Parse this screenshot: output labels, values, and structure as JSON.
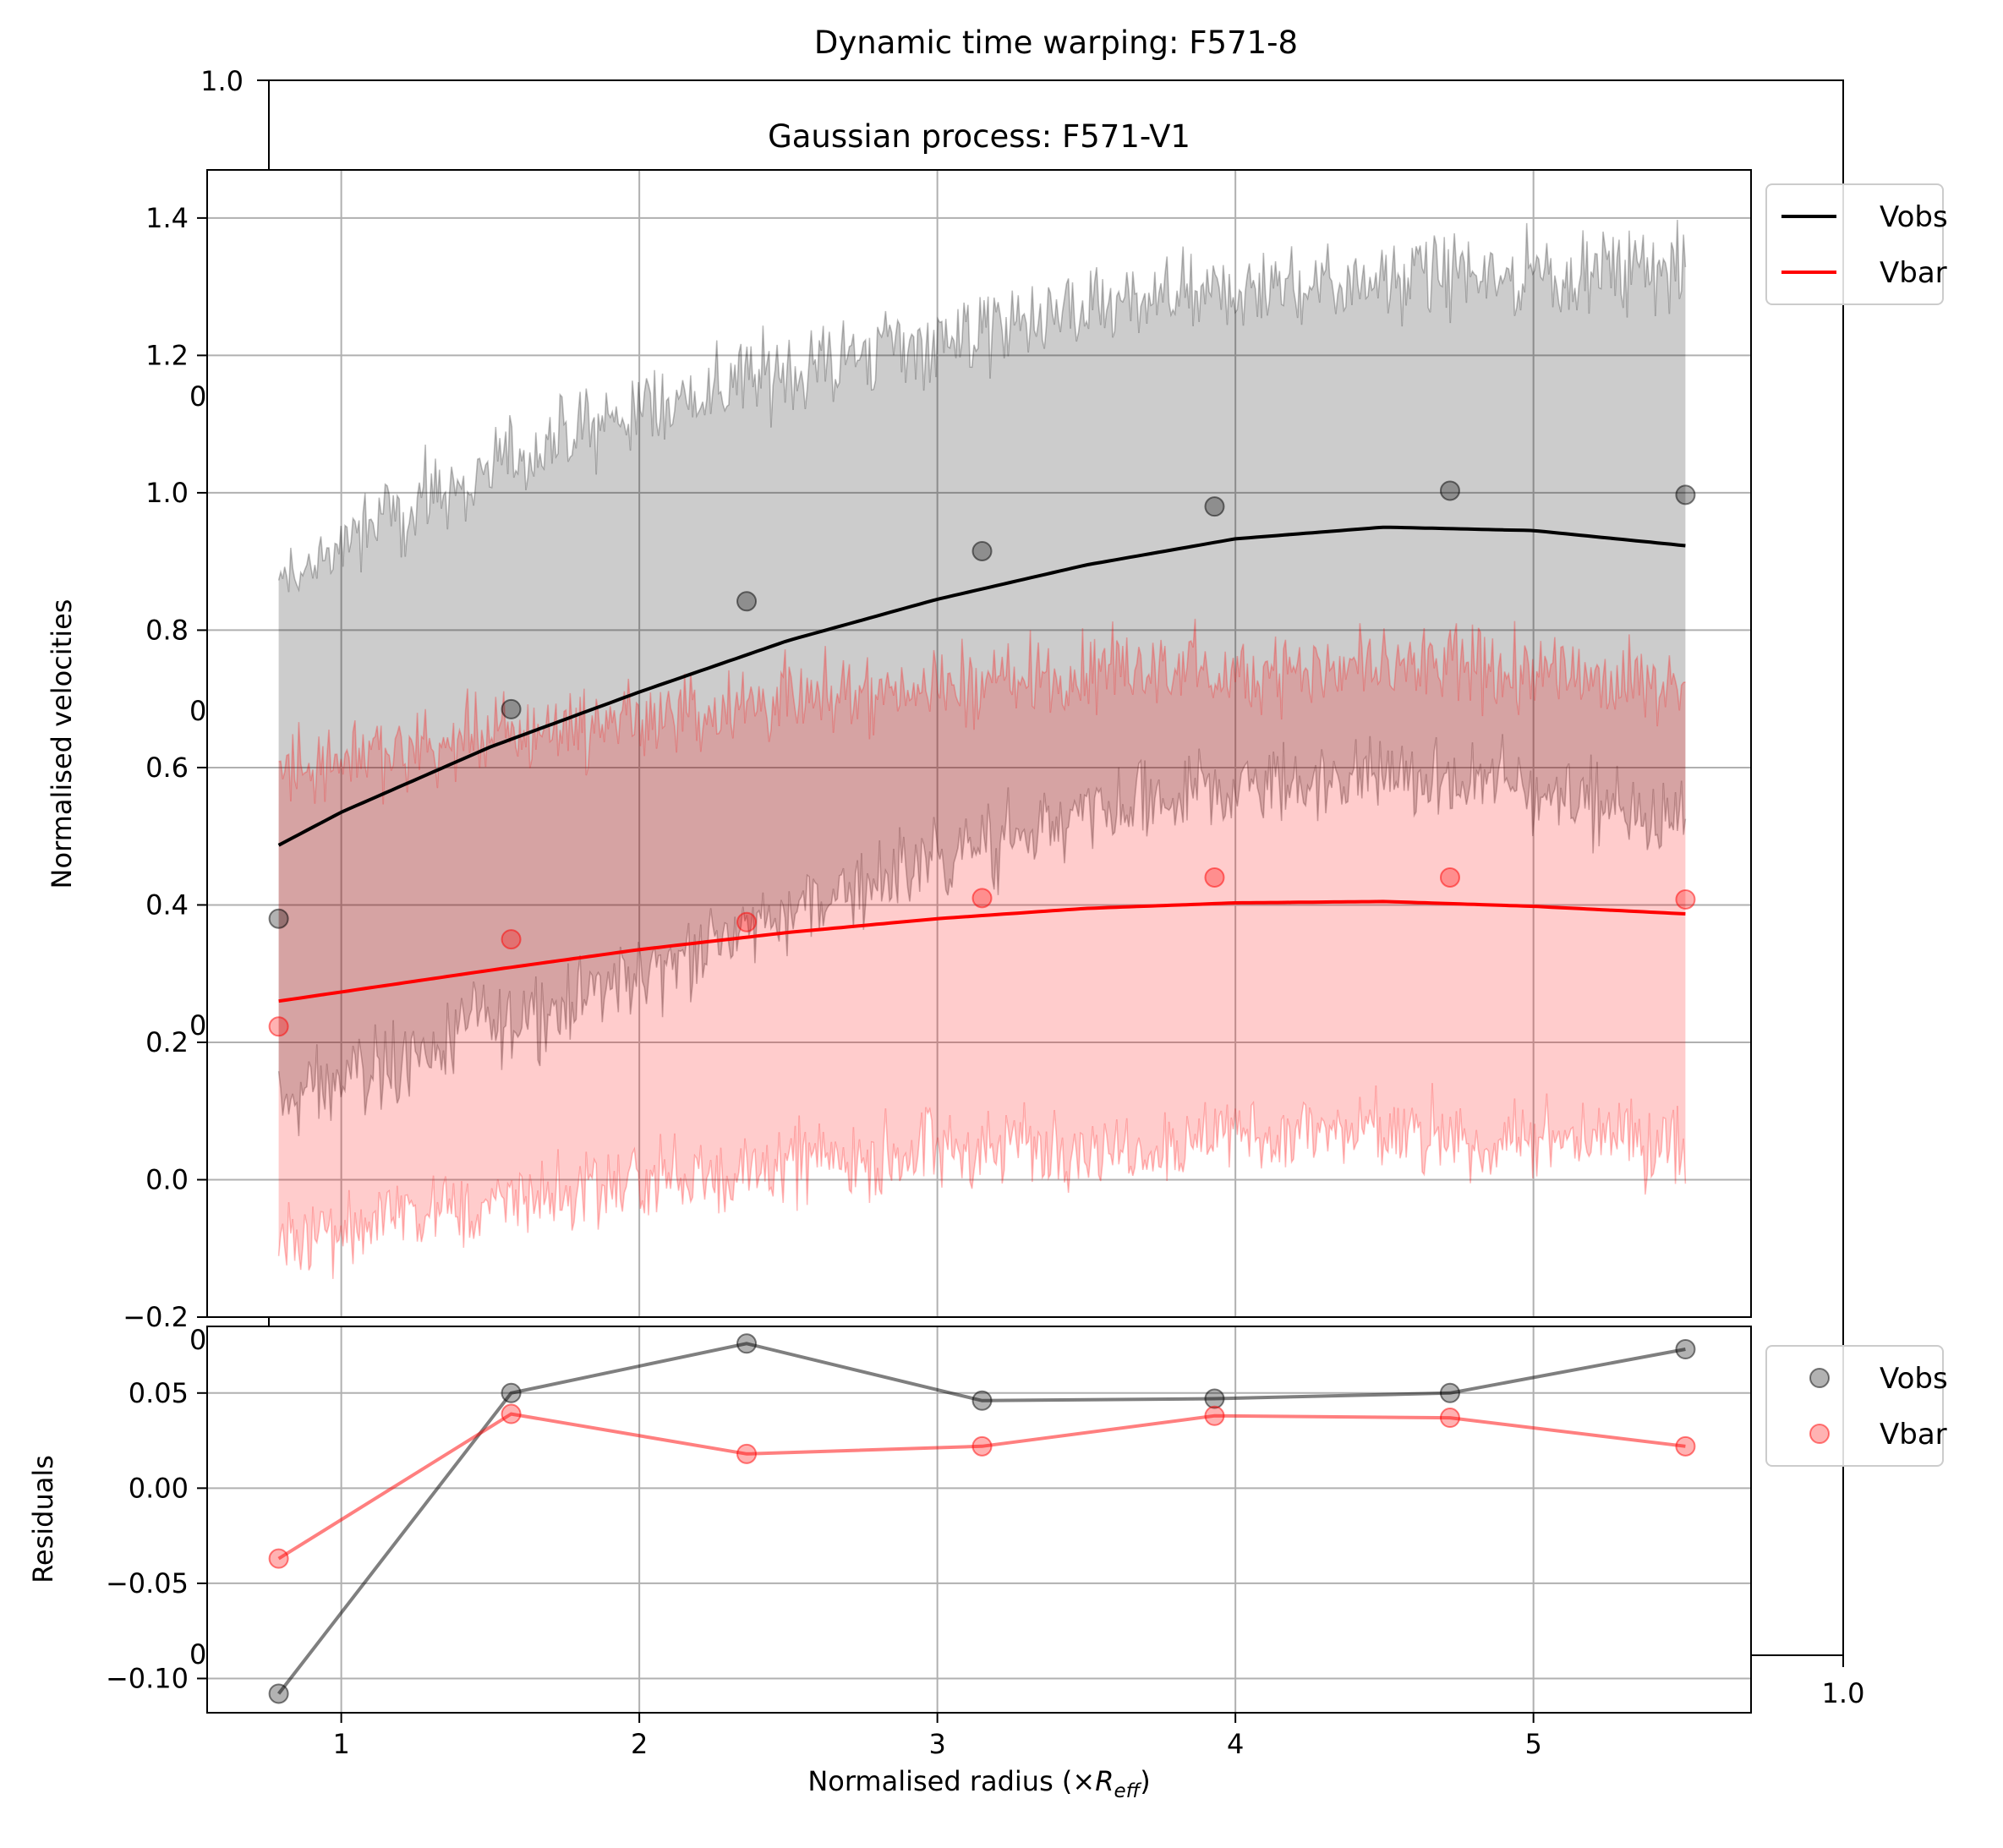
{
  "chart_data": [
    {
      "type": "frame",
      "title": "Dynamic time warping: F571-8",
      "ticks": {
        "top_left": "1.0",
        "bottom_right": "1.0",
        "stray": [
          "0",
          "0",
          "0",
          "0",
          "0"
        ]
      }
    },
    {
      "type": "line",
      "title": "Gaussian process: F571-V1",
      "xlabel": "Normalised radius (×R_eff)",
      "xlabel_parts": {
        "main": "Normalised radius (×",
        "sym": "R",
        "sub": "eff",
        "close": ")"
      },
      "ylabel": "Normalised velocities",
      "xlim": [
        0.55,
        5.73
      ],
      "ylim": [
        -0.2,
        1.47
      ],
      "x_ticks": [
        1,
        2,
        3,
        4,
        5
      ],
      "x_tick_labels": [
        "1",
        "2",
        "3",
        "4",
        "5"
      ],
      "y_ticks": [
        -0.2,
        0.0,
        0.2,
        0.4,
        0.6,
        0.8,
        1.0,
        1.2,
        1.4
      ],
      "y_tick_labels": [
        "−0.2",
        "0.0",
        "0.2",
        "0.4",
        "0.6",
        "0.8",
        "1.0",
        "1.2",
        "1.4"
      ],
      "grid": true,
      "legend": {
        "position": "outside-top-right",
        "entries": [
          "Vobs",
          "Vbar"
        ]
      },
      "series": [
        {
          "name": "Vobs",
          "color": "#000000",
          "points_x": [
            0.79,
            1.57,
            2.36,
            3.15,
            3.93,
            4.72,
            5.51
          ],
          "points_y": [
            0.38,
            0.685,
            0.842,
            0.915,
            0.98,
            1.003,
            0.997
          ],
          "fit_x": [
            0.79,
            1.0,
            1.5,
            2.0,
            2.5,
            3.0,
            3.5,
            4.0,
            4.5,
            5.0,
            5.51
          ],
          "fit_y": [
            0.487,
            0.535,
            0.63,
            0.71,
            0.785,
            0.845,
            0.895,
            0.933,
            0.95,
            0.945,
            0.923
          ],
          "band_half_width_x": [
            0.79,
            1.2,
            2.0,
            3.0,
            4.0,
            5.0,
            5.51
          ],
          "band_half_width": [
            0.38,
            0.4,
            0.41,
            0.38,
            0.36,
            0.375,
            0.4
          ]
        },
        {
          "name": "Vbar",
          "color": "#ff0000",
          "points_x": [
            0.79,
            1.57,
            2.36,
            3.15,
            3.93,
            4.72,
            5.51
          ],
          "points_y": [
            0.223,
            0.35,
            0.375,
            0.41,
            0.44,
            0.44,
            0.408
          ],
          "fit_x": [
            0.79,
            1.5,
            2.0,
            2.5,
            3.0,
            3.5,
            4.0,
            4.5,
            5.0,
            5.51
          ],
          "fit_y": [
            0.26,
            0.305,
            0.335,
            0.36,
            0.38,
            0.395,
            0.403,
            0.405,
            0.398,
            0.387
          ],
          "band_half_width": 0.34
        }
      ]
    },
    {
      "type": "line",
      "ylabel": "Residuals",
      "xlim": [
        0.55,
        5.73
      ],
      "ylim": [
        -0.118,
        0.085
      ],
      "y_ticks": [
        -0.1,
        -0.05,
        0.0,
        0.05
      ],
      "y_tick_labels": [
        "−0.10",
        "−0.05",
        "0.00",
        "0.05"
      ],
      "grid": true,
      "legend": {
        "position": "outside-right",
        "entries": [
          "Vobs",
          "Vbar"
        ]
      },
      "series": [
        {
          "name": "Vobs",
          "color": "#000000",
          "x": [
            0.79,
            1.57,
            2.36,
            3.15,
            3.93,
            4.72,
            5.51
          ],
          "y": [
            -0.108,
            0.05,
            0.076,
            0.046,
            0.047,
            0.05,
            0.073
          ]
        },
        {
          "name": "Vbar",
          "color": "#ff0000",
          "x": [
            0.79,
            1.57,
            2.36,
            3.15,
            3.93,
            4.72,
            5.51
          ],
          "y": [
            -0.037,
            0.039,
            0.018,
            0.022,
            0.038,
            0.037,
            0.022
          ]
        }
      ]
    }
  ]
}
